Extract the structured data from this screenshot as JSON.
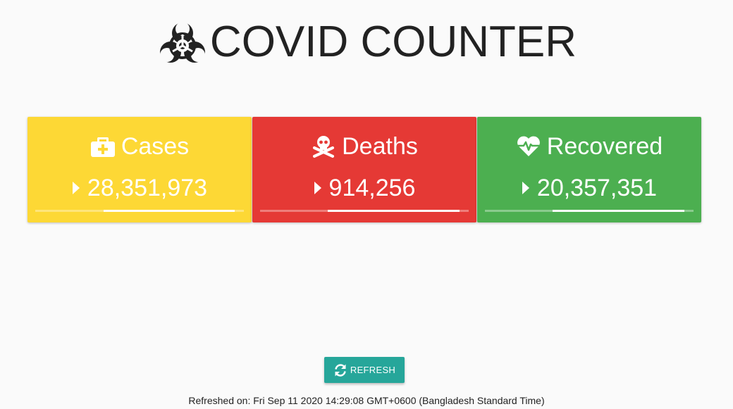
{
  "header": {
    "title": "COVID COUNTER",
    "logo_icon": "biohazard-icon"
  },
  "cards": [
    {
      "label": "Cases",
      "icon": "medkit-icon",
      "value": "28,351,973",
      "color": "#fdd835"
    },
    {
      "label": "Deaths",
      "icon": "skull-crossbones-icon",
      "value": "914,256",
      "color": "#e53935"
    },
    {
      "label": "Recovered",
      "icon": "heartbeat-icon",
      "value": "20,357,351",
      "color": "#4caf50"
    }
  ],
  "refresh": {
    "label": "REFRESH",
    "icon": "sync-icon",
    "color": "#26a69a"
  },
  "footer": {
    "refreshed_text": "Refreshed on: Fri Sep 11 2020 14:29:08 GMT+0600 (Bangladesh Standard Time)"
  }
}
